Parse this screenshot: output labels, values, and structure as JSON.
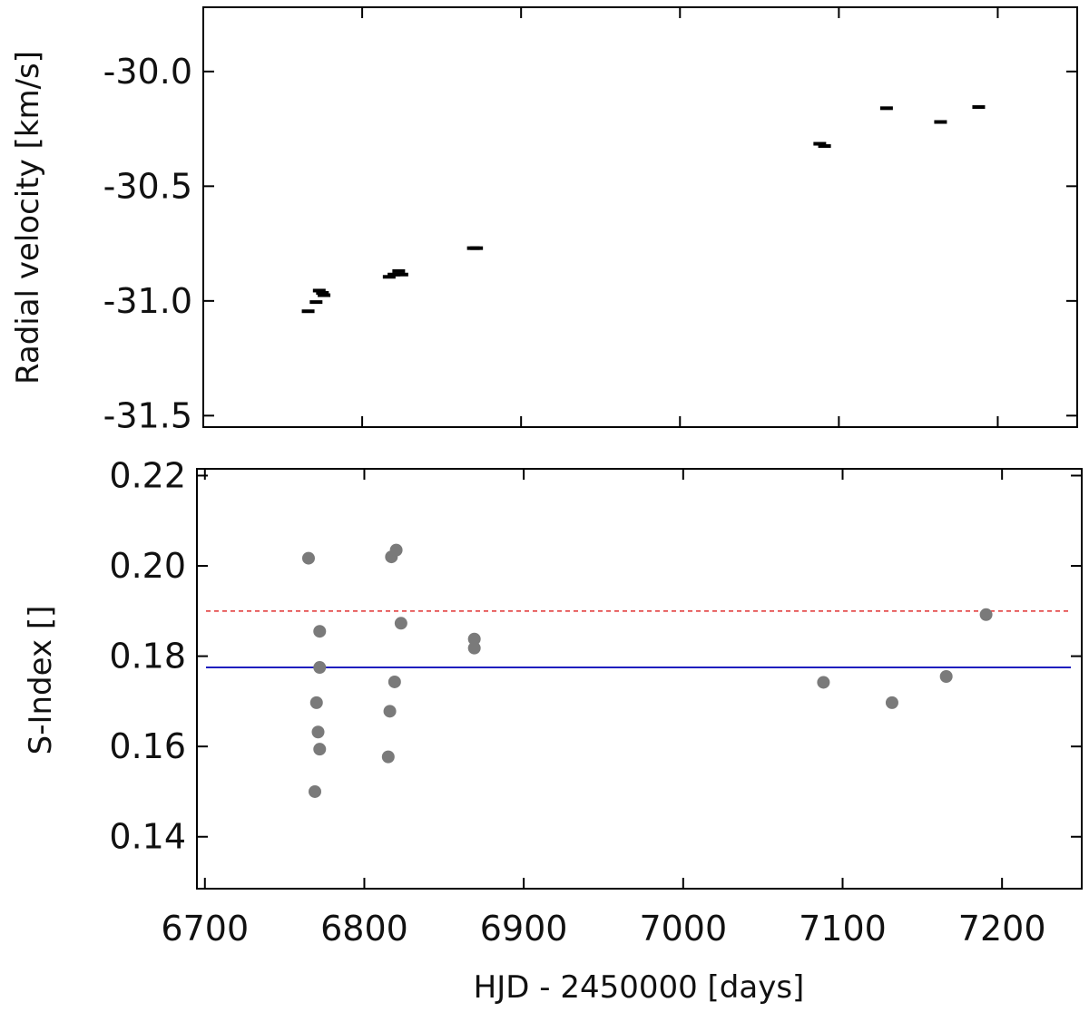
{
  "chart_data": [
    {
      "type": "scatter",
      "marker": "horizontal-dash",
      "color": "#000000",
      "ylabel": "Radial velocity [km/s]",
      "xlabel": "",
      "xlim": [
        6700,
        7250
      ],
      "ylim": [
        -31.55,
        -29.72
      ],
      "y_ticks": [
        -30.0,
        -30.5,
        -31.0,
        -31.5
      ],
      "y_tick_labels": [
        "-30.0",
        "-30.5",
        "-31.0",
        "-31.5"
      ],
      "x_ticks": [
        6700,
        6800,
        6900,
        7000,
        7100,
        7200
      ],
      "points": [
        {
          "x": 6766,
          "y": -31.045
        },
        {
          "x": 6771,
          "y": -31.005
        },
        {
          "x": 6773,
          "y": -30.955
        },
        {
          "x": 6775,
          "y": -30.965
        },
        {
          "x": 6776,
          "y": -30.975
        },
        {
          "x": 6817,
          "y": -30.895
        },
        {
          "x": 6820,
          "y": -30.885
        },
        {
          "x": 6823,
          "y": -30.87
        },
        {
          "x": 6825,
          "y": -30.885
        },
        {
          "x": 6870,
          "y": -30.77
        },
        {
          "x": 6872,
          "y": -30.77
        },
        {
          "x": 7088,
          "y": -30.315
        },
        {
          "x": 7091,
          "y": -30.325
        },
        {
          "x": 7130,
          "y": -30.16
        },
        {
          "x": 7164,
          "y": -30.22
        },
        {
          "x": 7188,
          "y": -30.155
        }
      ]
    },
    {
      "type": "scatter",
      "marker": "circle",
      "color": "#7a7a7a",
      "ylabel": "S-Index []",
      "xlabel": "HJD - 2450000 [days]",
      "xlim": [
        6695,
        7250
      ],
      "ylim": [
        0.1285,
        0.2215
      ],
      "x_ticks": [
        6700,
        6800,
        6900,
        7000,
        7100,
        7200
      ],
      "x_tick_labels": [
        "6700",
        "6800",
        "6900",
        "7000",
        "7100",
        "7200"
      ],
      "y_ticks": [
        0.14,
        0.16,
        0.18,
        0.2,
        0.22
      ],
      "y_tick_labels": [
        "0.14",
        "0.16",
        "0.18",
        "0.20",
        "0.22"
      ],
      "points": [
        {
          "x": 6765,
          "y": 0.2017
        },
        {
          "x": 6769,
          "y": 0.15
        },
        {
          "x": 6770,
          "y": 0.1697
        },
        {
          "x": 6771,
          "y": 0.1632
        },
        {
          "x": 6772,
          "y": 0.1855
        },
        {
          "x": 6772,
          "y": 0.1775
        },
        {
          "x": 6772,
          "y": 0.1594
        },
        {
          "x": 6815,
          "y": 0.1577
        },
        {
          "x": 6816,
          "y": 0.1678
        },
        {
          "x": 6817,
          "y": 0.202
        },
        {
          "x": 6819,
          "y": 0.1743
        },
        {
          "x": 6820,
          "y": 0.2035
        },
        {
          "x": 6823,
          "y": 0.1873
        },
        {
          "x": 6869,
          "y": 0.1838
        },
        {
          "x": 6869,
          "y": 0.1818
        },
        {
          "x": 7088,
          "y": 0.1742
        },
        {
          "x": 7131,
          "y": 0.1697
        },
        {
          "x": 7165,
          "y": 0.1755
        },
        {
          "x": 7190,
          "y": 0.1892
        }
      ],
      "reference_lines": [
        {
          "y": 0.1775,
          "color": "#1f1fbf",
          "style": "solid"
        },
        {
          "y": 0.19,
          "color": "#e03030",
          "style": "dashed"
        }
      ]
    }
  ]
}
